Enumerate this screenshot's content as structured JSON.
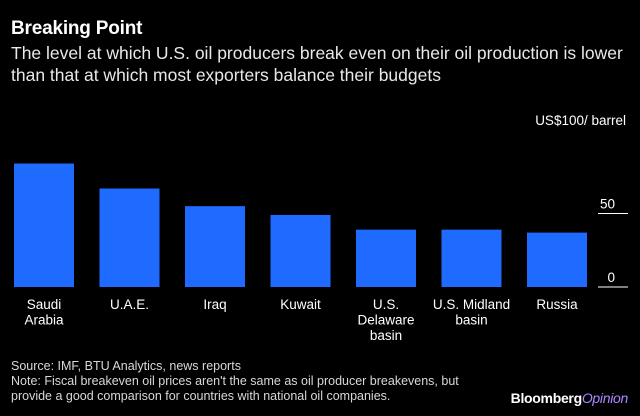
{
  "header": {
    "title": "Breaking Point",
    "subtitle": "The level at which U.S. oil producers break even on their oil production is lower than that at which most exporters balance their budgets"
  },
  "chart_data": {
    "type": "bar",
    "title": "Breaking Point",
    "unit_label": "US$100/ barrel",
    "categories": [
      [
        "Saudi",
        "Arabia"
      ],
      [
        "U.A.E."
      ],
      [
        "Iraq"
      ],
      [
        "Kuwait"
      ],
      [
        "U.S.",
        "Delaware",
        "basin"
      ],
      [
        "U.S. Midland",
        "basin"
      ],
      [
        "Russia"
      ]
    ],
    "values": [
      84,
      67,
      55,
      49,
      39,
      39,
      37
    ],
    "ylim": [
      0,
      100
    ],
    "yticks": [
      0,
      50
    ],
    "grid": false,
    "bar_color": "#1f6bff",
    "tick_color": "#ffffff"
  },
  "footer": {
    "source": "Source: IMF, BTU Analytics, news reports",
    "note_line1": "Note: Fiscal breakeven oil prices aren't the same as oil producer breakevens, but",
    "note_line2": "provide a good comparison for countries with national oil companies.",
    "brand_main": "Bloomberg",
    "brand_accent": "Opinion"
  }
}
